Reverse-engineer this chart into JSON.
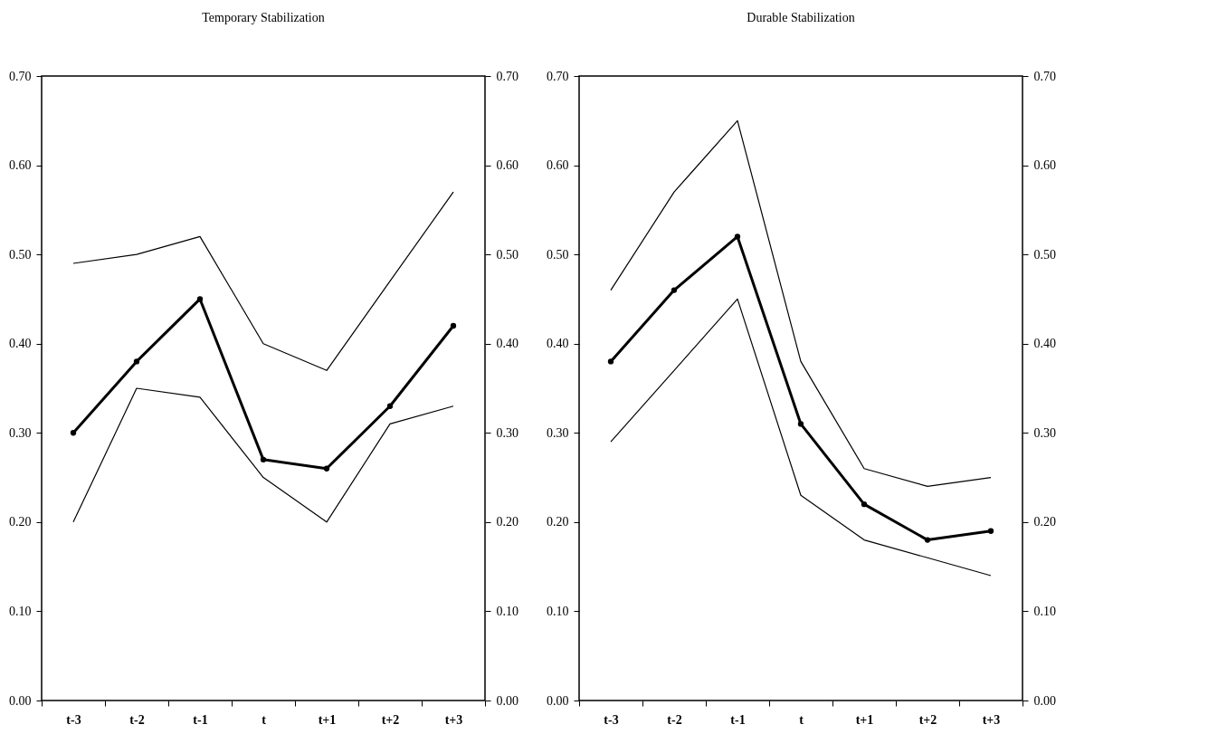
{
  "chart_data": [
    {
      "type": "line",
      "title": "Temporary Stabilization",
      "categories": [
        "t-3",
        "t-2",
        "t-1",
        "t",
        "t+1",
        "t+2",
        "t+3"
      ],
      "series": [
        {
          "color": "#000000",
          "marker": "none",
          "values": [
            0.49,
            0.5,
            0.52,
            0.4,
            0.37,
            0.47,
            0.57
          ]
        },
        {
          "color": "#000000",
          "marker": "circle",
          "values": [
            0.3,
            0.38,
            0.45,
            0.27,
            0.26,
            0.33,
            0.42
          ]
        },
        {
          "color": "#000000",
          "marker": "none",
          "values": [
            0.2,
            0.35,
            0.34,
            0.25,
            0.2,
            0.31,
            0.33
          ]
        }
      ],
      "ylim": [
        0,
        0.7
      ],
      "yticks": [
        {
          "value": 0,
          "label": "0.00"
        },
        {
          "value": 0.1,
          "label": "0.10"
        },
        {
          "value": 0.2,
          "label": "0.20"
        },
        {
          "value": 0.3,
          "label": "0.30"
        },
        {
          "value": 0.4,
          "label": "0.40"
        },
        {
          "value": 0.5,
          "label": "0.50"
        },
        {
          "value": 0.6,
          "label": "0.60"
        },
        {
          "value": 0.7,
          "label": "0.70"
        }
      ],
      "y2lim": [
        0,
        0.7
      ],
      "y2ticks": [
        {
          "value": 0,
          "label": "0.00"
        },
        {
          "value": 0.1,
          "label": "0.10"
        },
        {
          "value": 0.2,
          "label": "0.20"
        },
        {
          "value": 0.3,
          "label": "0.30"
        },
        {
          "value": 0.4,
          "label": "0.40"
        },
        {
          "value": 0.5,
          "label": "0.50"
        },
        {
          "value": 0.6,
          "label": "0.60"
        },
        {
          "value": 0.7,
          "label": "0.70"
        }
      ],
      "grid": false
    },
    {
      "type": "line",
      "title": "Durable Stabilization",
      "categories": [
        "t-3",
        "t-2",
        "t-1",
        "t",
        "t+1",
        "t+2",
        "t+3"
      ],
      "series": [
        {
          "color": "#000000",
          "marker": "none",
          "values": [
            0.46,
            0.57,
            0.65,
            0.38,
            0.26,
            0.24,
            0.25
          ]
        },
        {
          "color": "#000000",
          "marker": "circle",
          "values": [
            0.38,
            0.46,
            0.52,
            0.31,
            0.22,
            0.18,
            0.19
          ]
        },
        {
          "color": "#000000",
          "marker": "none",
          "values": [
            0.29,
            0.37,
            0.45,
            0.23,
            0.18,
            0.16,
            0.14
          ]
        }
      ],
      "ylim": [
        0,
        0.7
      ],
      "yticks": [
        {
          "value": 0,
          "label": "0.00"
        },
        {
          "value": 0.1,
          "label": "0.10"
        },
        {
          "value": 0.2,
          "label": "0.20"
        },
        {
          "value": 0.3,
          "label": "0.30"
        },
        {
          "value": 0.4,
          "label": "0.40"
        },
        {
          "value": 0.5,
          "label": "0.50"
        },
        {
          "value": 0.6,
          "label": "0.60"
        },
        {
          "value": 0.7,
          "label": "0.70"
        }
      ],
      "y2lim": [
        0,
        0.7
      ],
      "y2ticks": [
        {
          "value": 0,
          "label": "0.00"
        },
        {
          "value": 0.1,
          "label": "0.10"
        },
        {
          "value": 0.2,
          "label": "0.20"
        },
        {
          "value": 0.3,
          "label": "0.30"
        },
        {
          "value": 0.4,
          "label": "0.40"
        },
        {
          "value": 0.5,
          "label": "0.50"
        },
        {
          "value": 0.6,
          "label": "0.60"
        },
        {
          "value": 0.7,
          "label": "0.70"
        }
      ],
      "grid": false
    }
  ]
}
